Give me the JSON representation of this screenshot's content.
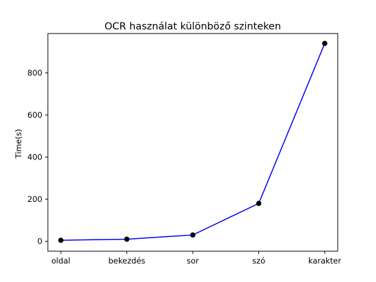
{
  "chart_data": {
    "type": "line",
    "title": "OCR használat különböző szinteken",
    "xlabel": "",
    "ylabel": "Time(s)",
    "categories": [
      "oldal",
      "bekezdés",
      "sor",
      "szó",
      "karakter"
    ],
    "values": [
      5,
      10,
      30,
      180,
      940
    ],
    "ylim": [
      -47,
      987
    ],
    "yticks": [
      0,
      200,
      400,
      600,
      800
    ],
    "grid": false,
    "legend": "none",
    "colors": {
      "line": "#0000ff",
      "marker": "#000000",
      "axes": "#000000",
      "background": "#ffffff"
    }
  }
}
